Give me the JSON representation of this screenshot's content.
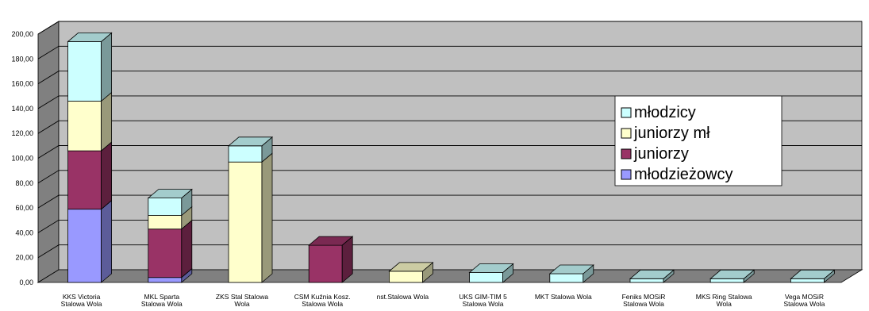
{
  "chart_data": {
    "type": "bar",
    "stacked": true,
    "three_d": true,
    "title": "",
    "xlabel": "",
    "ylabel": "",
    "ylim": [
      0,
      200
    ],
    "y_tick_labels": [
      "0,00",
      "20,00",
      "40,00",
      "60,00",
      "80,00",
      "100,00",
      "120,00",
      "140,00",
      "160,00",
      "180,00",
      "200,00"
    ],
    "grid": true,
    "legend_position": "right",
    "categories": [
      [
        "KKS Victoria",
        "Stalowa Wola"
      ],
      [
        "MKL Sparta",
        "Stalowa Wola"
      ],
      [
        "ZKS Stal Stalowa",
        "Wola"
      ],
      [
        "CSM Kuźnia Kosz.",
        "Stalowa Wola"
      ],
      [
        "nst.Stalowa Wola"
      ],
      [
        "UKS GIM-TIM 5",
        "Stalowa Wola"
      ],
      [
        "MKT Stalowa Wola"
      ],
      [
        "Feniks MOSiR",
        "Stalowa Wola"
      ],
      [
        "MKS Ring Stalowa",
        "Wola"
      ],
      [
        "Vega MOSiR",
        "Stalowa Wola"
      ]
    ],
    "series": [
      {
        "name": "młodzieżowcy",
        "color": "#9999ff",
        "values": [
          59,
          4,
          0,
          0,
          0,
          0,
          0,
          0,
          0,
          0
        ]
      },
      {
        "name": "juniorzy",
        "color": "#993366",
        "values": [
          47,
          39,
          0,
          30,
          0,
          0,
          0,
          0,
          0,
          0
        ]
      },
      {
        "name": "juniorzy mł",
        "color": "#ffffcc",
        "values": [
          40,
          11,
          97,
          0,
          9,
          0,
          0,
          0,
          0,
          0
        ]
      },
      {
        "name": "młodzicy",
        "color": "#ccffff",
        "values": [
          48,
          14,
          13,
          0,
          0,
          8,
          7,
          3,
          3,
          3
        ]
      }
    ],
    "legend_order": [
      "młodzicy",
      "juniorzy mł",
      "juniorzy",
      "młodzieżowcy"
    ],
    "colors": {
      "back_wall": "#c0c0c0",
      "side_wall": "#808080",
      "floor": "#808080",
      "gridline": "#000000"
    }
  }
}
